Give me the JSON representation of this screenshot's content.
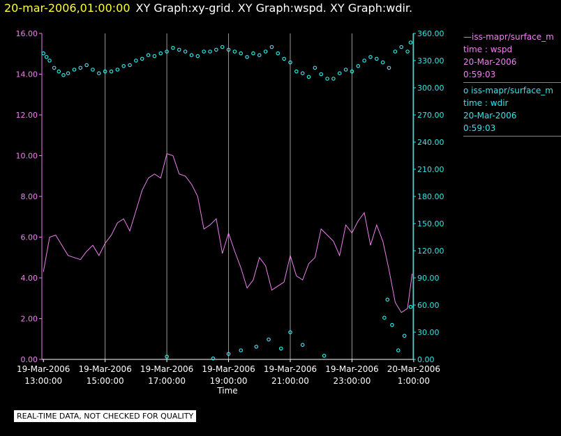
{
  "header": {
    "timestamp": "20-mar-2006,01:00:00",
    "title": "XY Graph:xy-grid.  XY Graph:wspd.  XY Graph:wdir."
  },
  "legend": {
    "series1_line1": "—iss-mapr/surface_m",
    "series1_line2": "time : wspd",
    "series1_line3": "20-Mar-2006",
    "series1_line4": "0:59:03",
    "series2_line1": "o  iss-mapr/surface_m",
    "series2_line2": "time : wdir",
    "series2_line3": "20-Mar-2006",
    "series2_line4": "0:59:03"
  },
  "footer": {
    "note": "REAL-TIME DATA, NOT CHECKED FOR QUALITY"
  },
  "colors": {
    "wspd": "#ee82ee",
    "wdir": "#33e6e6",
    "grid": "#999999",
    "background": "#000000"
  },
  "chart_data": {
    "type": "line",
    "xlabel": "Time",
    "x_ticks": [
      [
        "19-Mar-2006",
        "13:00:00"
      ],
      [
        "19-Mar-2006",
        "15:00:00"
      ],
      [
        "19-Mar-2006",
        "17:00:00"
      ],
      [
        "19-Mar-2006",
        "19:00:00"
      ],
      [
        "19-Mar-2006",
        "21:00:00"
      ],
      [
        "19-Mar-2006",
        "23:00:00"
      ],
      [
        "20-Mar-2006",
        "1:00:00"
      ]
    ],
    "x_range_hours": [
      12.95,
      24.98
    ],
    "x_tick_hours": [
      13,
      15,
      17,
      19,
      21,
      23,
      25
    ],
    "grid_vertical": true,
    "y_left": {
      "range": [
        0,
        16
      ],
      "ticks": [
        "0.00",
        "2.00",
        "4.00",
        "6.00",
        "8.00",
        "10.00",
        "12.00",
        "14.00",
        "16.00"
      ],
      "color": "#ee82ee"
    },
    "y_right": {
      "range": [
        0,
        360
      ],
      "ticks": [
        "0.00",
        "30.00",
        "60.00",
        "90.00",
        "120.00",
        "150.00",
        "180.00",
        "210.00",
        "240.00",
        "270.00",
        "300.00",
        "330.00",
        "360.00"
      ],
      "color": "#33e6e6"
    },
    "series": [
      {
        "name": "time : wspd",
        "axis": "left",
        "style": "line",
        "x": [
          13.0,
          13.2,
          13.4,
          13.6,
          13.8,
          14.0,
          14.2,
          14.4,
          14.6,
          14.8,
          15.0,
          15.2,
          15.4,
          15.6,
          15.8,
          16.0,
          16.2,
          16.4,
          16.6,
          16.8,
          17.0,
          17.2,
          17.4,
          17.6,
          17.8,
          18.0,
          18.2,
          18.4,
          18.6,
          18.8,
          19.0,
          19.2,
          19.4,
          19.6,
          19.8,
          20.0,
          20.2,
          20.4,
          20.6,
          20.8,
          21.0,
          21.2,
          21.4,
          21.6,
          21.8,
          22.0,
          22.2,
          22.4,
          22.6,
          22.8,
          23.0,
          23.2,
          23.4,
          23.6,
          23.8,
          24.0,
          24.2,
          24.4,
          24.6,
          24.8,
          24.95
        ],
        "values": [
          4.3,
          6.0,
          6.1,
          5.6,
          5.1,
          5.0,
          4.9,
          5.3,
          5.6,
          5.1,
          5.7,
          6.1,
          6.7,
          6.9,
          6.3,
          7.3,
          8.3,
          8.9,
          9.1,
          8.9,
          10.1,
          10.0,
          9.1,
          9.0,
          8.6,
          8.0,
          6.4,
          6.6,
          6.9,
          5.2,
          6.2,
          5.3,
          4.5,
          3.5,
          3.9,
          5.0,
          4.6,
          3.4,
          3.6,
          3.8,
          5.1,
          4.1,
          3.9,
          4.7,
          5.0,
          6.4,
          6.1,
          5.8,
          5.1,
          6.6,
          6.2,
          6.8,
          7.2,
          5.6,
          6.6,
          5.8,
          4.4,
          2.8,
          2.3,
          2.5,
          4.2
        ]
      },
      {
        "name": "time : wdir",
        "axis": "right",
        "style": "scatter",
        "x": [
          13.0,
          13.1,
          13.2,
          13.35,
          13.5,
          13.65,
          13.8,
          14.0,
          14.2,
          14.4,
          14.6,
          14.8,
          15.0,
          15.2,
          15.4,
          15.6,
          15.8,
          16.0,
          16.2,
          16.4,
          16.6,
          16.8,
          17.0,
          17.2,
          17.4,
          17.6,
          17.8,
          18.0,
          18.2,
          18.4,
          18.6,
          18.8,
          19.0,
          19.2,
          19.4,
          19.6,
          19.8,
          20.0,
          20.2,
          20.4,
          20.6,
          20.8,
          21.0,
          21.2,
          21.4,
          21.6,
          21.8,
          22.0,
          22.2,
          22.4,
          22.6,
          22.8,
          23.0,
          23.2,
          23.4,
          23.6,
          23.8,
          24.0,
          24.2,
          24.4,
          24.6,
          24.8,
          24.9,
          17.0,
          18.5,
          19.0,
          19.4,
          19.9,
          20.3,
          20.7,
          21.0,
          21.4,
          22.1,
          24.05,
          24.15,
          24.3,
          24.5,
          24.7,
          24.9
        ],
        "values": [
          338,
          334,
          330,
          322,
          318,
          314,
          316,
          320,
          322,
          325,
          320,
          316,
          318,
          318,
          320,
          324,
          325,
          330,
          332,
          336,
          335,
          338,
          340,
          344,
          342,
          340,
          336,
          335,
          340,
          340,
          342,
          345,
          342,
          340,
          338,
          334,
          338,
          336,
          340,
          345,
          338,
          332,
          328,
          318,
          316,
          312,
          322,
          315,
          310,
          310,
          316,
          320,
          318,
          324,
          330,
          334,
          332,
          328,
          322,
          340,
          345,
          340,
          350,
          3,
          1,
          6,
          10,
          14,
          22,
          12,
          30,
          16,
          4,
          46,
          66,
          38,
          10,
          26,
          58
        ]
      }
    ]
  }
}
